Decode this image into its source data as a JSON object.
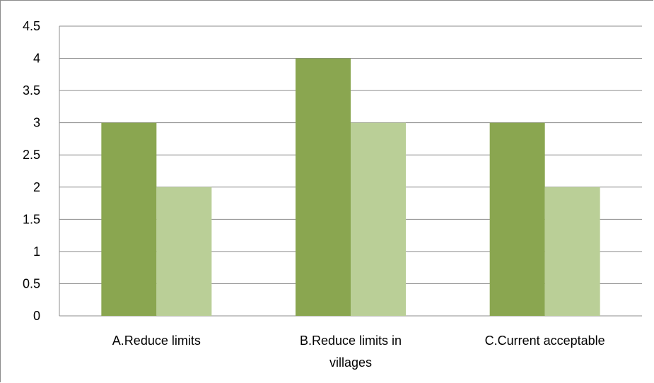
{
  "chart_data": {
    "type": "bar",
    "title": "",
    "xlabel": "",
    "ylabel": "",
    "categories": [
      [
        "A.Reduce limits"
      ],
      [
        "B.Reduce limits in",
        "villages"
      ],
      [
        "C.Current acceptable"
      ]
    ],
    "series": [
      {
        "values": [
          3,
          4,
          3
        ],
        "color": "#8aa650"
      },
      {
        "values": [
          2,
          3,
          2
        ],
        "color": "#bacf97"
      }
    ],
    "ylim": [
      0,
      4.5
    ],
    "yticks": [
      "0",
      "0.5",
      "1",
      "1.5",
      "2",
      "2.5",
      "3",
      "3.5",
      "4",
      "4.5"
    ],
    "grid": true,
    "legend": "none",
    "colors": {
      "gridline": "#8c8c8c",
      "axis": "#8c8c8c"
    }
  }
}
